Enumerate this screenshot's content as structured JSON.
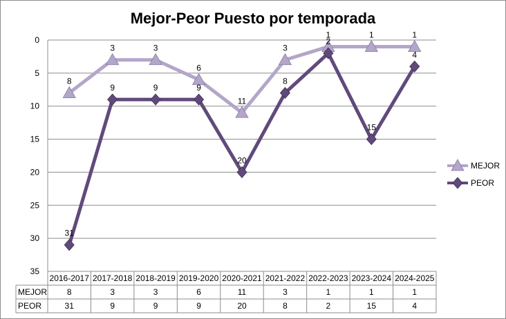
{
  "chart_data": {
    "type": "line",
    "title": "Mejor-Peor Puesto por temporada",
    "categories": [
      "2016-2017",
      "2017-2018",
      "2018-2019",
      "2019-2020",
      "2020-2021",
      "2021-2022",
      "2022-2023",
      "2023-2024",
      "2024-2025"
    ],
    "series": [
      {
        "name": "MEJOR",
        "values": [
          8,
          3,
          3,
          6,
          11,
          3,
          1,
          1,
          1
        ],
        "color": "#b3a6c9",
        "marker": "triangle"
      },
      {
        "name": "PEOR",
        "values": [
          31,
          9,
          9,
          9,
          20,
          8,
          2,
          15,
          4
        ],
        "color": "#604a7b",
        "marker": "diamond"
      }
    ],
    "ylim": [
      0,
      35
    ],
    "yticks": [
      0,
      5,
      10,
      15,
      20,
      25,
      30,
      35
    ],
    "y_reversed": true,
    "grid": true,
    "legend": "right",
    "data_table": true
  }
}
